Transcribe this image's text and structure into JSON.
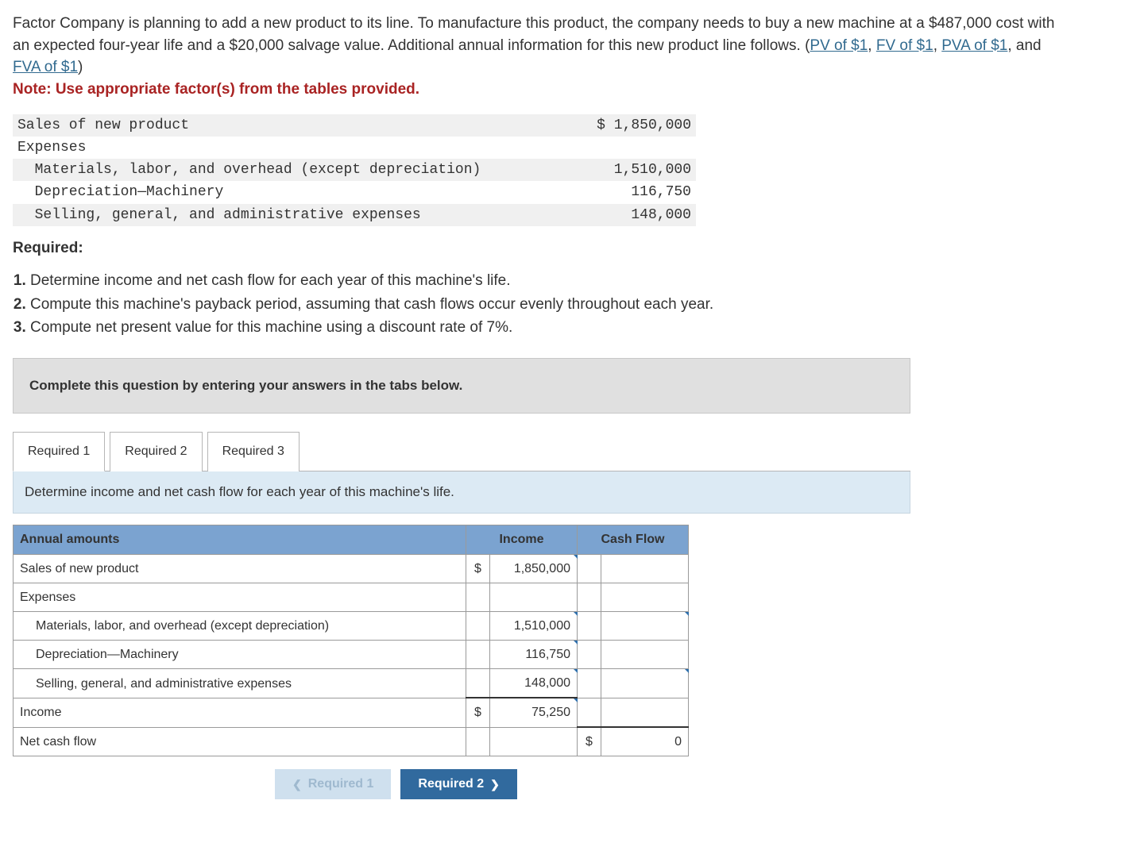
{
  "problem": {
    "text_before_links": "Factor Company is planning to add a new product to its line. To manufacture this product, the company needs to buy a new machine at a $487,000 cost with an expected four-year life and a $20,000 salvage value. Additional annual information for this new product line follows. (",
    "links": [
      "PV of $1",
      "FV of $1",
      "PVA of $1",
      "FVA of $1"
    ],
    "link_sep": ", ",
    "link_last_sep": ", and ",
    "text_after_links": ")",
    "note": "Note: Use appropriate factor(s) from the tables provided."
  },
  "given": {
    "rows": [
      {
        "label": "Sales of new product",
        "value": "$ 1,850,000",
        "shade": true,
        "indent": 0
      },
      {
        "label": "Expenses",
        "value": "",
        "shade": false,
        "indent": 0
      },
      {
        "label": "  Materials, labor, and overhead (except depreciation)",
        "value": "1,510,000",
        "shade": true,
        "indent": 0
      },
      {
        "label": "  Depreciation—Machinery",
        "value": "116,750",
        "shade": false,
        "indent": 0
      },
      {
        "label": "  Selling, general, and administrative expenses",
        "value": "148,000",
        "shade": true,
        "indent": 0
      }
    ]
  },
  "required": {
    "heading": "Required:",
    "items": [
      "Determine income and net cash flow for each year of this machine's life.",
      "Compute this machine's payback period, assuming that cash flows occur evenly throughout each year.",
      "Compute net present value for this machine using a discount rate of 7%."
    ]
  },
  "instruction_bar": "Complete this question by entering your answers in the tabs below.",
  "tabs": [
    "Required 1",
    "Required 2",
    "Required 3"
  ],
  "active_tab": 0,
  "sub_instruction": "Determine income and net cash flow for each year of this machine's life.",
  "entry_table": {
    "headers": [
      "Annual amounts",
      "Income",
      "Cash Flow"
    ],
    "rows": [
      {
        "label": "Sales of new product",
        "indent": 0,
        "income_cur": "$",
        "income_val": "1,850,000",
        "cf_cur": "",
        "cf_val": "",
        "income_marker": true,
        "cf_marker": false
      },
      {
        "label": "Expenses",
        "indent": 0,
        "income_cur": "",
        "income_val": "",
        "cf_cur": "",
        "cf_val": "",
        "income_marker": false,
        "cf_marker": false
      },
      {
        "label": "Materials, labor, and overhead (except depreciation)",
        "indent": 1,
        "income_cur": "",
        "income_val": "1,510,000",
        "cf_cur": "",
        "cf_val": "",
        "income_marker": true,
        "cf_marker": true
      },
      {
        "label": "Depreciation—Machinery",
        "indent": 1,
        "income_cur": "",
        "income_val": "116,750",
        "cf_cur": "",
        "cf_val": "",
        "income_marker": true,
        "cf_marker": false
      },
      {
        "label": "Selling, general, and administrative expenses",
        "indent": 1,
        "income_cur": "",
        "income_val": "148,000",
        "cf_cur": "",
        "cf_val": "",
        "income_marker": true,
        "cf_marker": true
      },
      {
        "label": "Income",
        "indent": 0,
        "income_cur": "$",
        "income_val": "75,250",
        "cf_cur": "",
        "cf_val": "",
        "income_marker": true,
        "cf_marker": false,
        "income_total": true
      },
      {
        "label": "Net cash flow",
        "indent": 0,
        "income_cur": "",
        "income_val": "",
        "cf_cur": "$",
        "cf_val": "0",
        "income_marker": false,
        "cf_marker": false,
        "cf_total": true
      }
    ]
  },
  "nav": {
    "prev": "Required 1",
    "next": "Required 2"
  },
  "colors": {
    "link": "#316a8f",
    "note": "#a92323",
    "header_bg": "#7ba3d0",
    "sub_instruction_bg": "#dceaf4",
    "btn_next_bg": "#316a9e",
    "btn_prev_bg": "#cfe0ee",
    "marker": "#2f6fab"
  }
}
